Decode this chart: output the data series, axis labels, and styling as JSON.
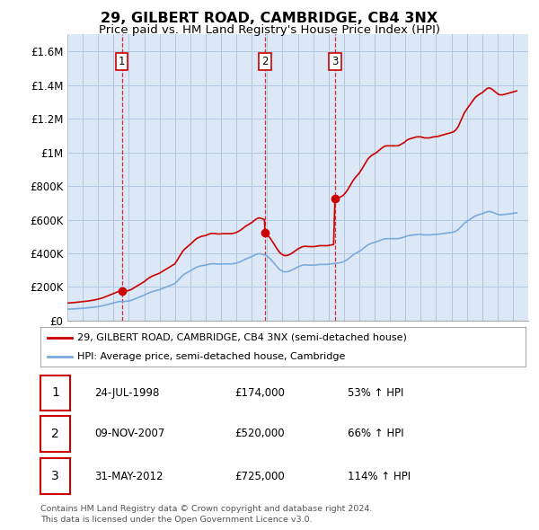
{
  "title": "29, GILBERT ROAD, CAMBRIDGE, CB4 3NX",
  "subtitle": "Price paid vs. HM Land Registry's House Price Index (HPI)",
  "title_fontsize": 11.5,
  "subtitle_fontsize": 9.5,
  "ylim": [
    0,
    1700000
  ],
  "yticks": [
    0,
    200000,
    400000,
    600000,
    800000,
    1000000,
    1200000,
    1400000,
    1600000
  ],
  "ytick_labels": [
    "£0",
    "£200K",
    "£400K",
    "£600K",
    "£800K",
    "£1M",
    "£1.2M",
    "£1.4M",
    "£1.6M"
  ],
  "xmin": 1995.0,
  "xmax": 2025.0,
  "plot_bg": "#dce8f5",
  "grid_color": "#b0c8e0",
  "red_color": "#cc0000",
  "blue_color": "#7aaadd",
  "dashed_color": "#cc0000",
  "legend_label_red": "29, GILBERT ROAD, CAMBRIDGE, CB4 3NX (semi-detached house)",
  "legend_label_blue": "HPI: Average price, semi-detached house, Cambridge",
  "transactions": [
    {
      "num": 1,
      "date": "24-JUL-1998",
      "price": 174000,
      "pct": "53%",
      "year": 1998.54
    },
    {
      "num": 2,
      "date": "09-NOV-2007",
      "price": 520000,
      "pct": "66%",
      "year": 2007.86
    },
    {
      "num": 3,
      "date": "31-MAY-2012",
      "price": 725000,
      "pct": "114%",
      "year": 2012.42
    }
  ],
  "footer1": "Contains HM Land Registry data © Crown copyright and database right 2024.",
  "footer2": "This data is licensed under the Open Government Licence v3.0.",
  "hpi_data": [
    [
      1995.0,
      68000
    ],
    [
      1995.08,
      68500
    ],
    [
      1995.17,
      69000
    ],
    [
      1995.25,
      69200
    ],
    [
      1995.33,
      69500
    ],
    [
      1995.42,
      70000
    ],
    [
      1995.5,
      70500
    ],
    [
      1995.58,
      71000
    ],
    [
      1995.67,
      71500
    ],
    [
      1995.75,
      72000
    ],
    [
      1995.83,
      72500
    ],
    [
      1995.92,
      73000
    ],
    [
      1996.0,
      73500
    ],
    [
      1996.08,
      74000
    ],
    [
      1996.17,
      74800
    ],
    [
      1996.25,
      75500
    ],
    [
      1996.33,
      76000
    ],
    [
      1996.42,
      76800
    ],
    [
      1996.5,
      77500
    ],
    [
      1996.58,
      78200
    ],
    [
      1996.67,
      79000
    ],
    [
      1996.75,
      80000
    ],
    [
      1996.83,
      81000
    ],
    [
      1996.92,
      82000
    ],
    [
      1997.0,
      83000
    ],
    [
      1997.08,
      84500
    ],
    [
      1997.17,
      86000
    ],
    [
      1997.25,
      87500
    ],
    [
      1997.33,
      89000
    ],
    [
      1997.42,
      91000
    ],
    [
      1997.5,
      93000
    ],
    [
      1997.58,
      95000
    ],
    [
      1997.67,
      97000
    ],
    [
      1997.75,
      99000
    ],
    [
      1997.83,
      101000
    ],
    [
      1997.92,
      103000
    ],
    [
      1998.0,
      105000
    ],
    [
      1998.08,
      107000
    ],
    [
      1998.17,
      109000
    ],
    [
      1998.25,
      111000
    ],
    [
      1998.33,
      113000
    ],
    [
      1998.42,
      114000
    ],
    [
      1998.5,
      113000
    ],
    [
      1998.54,
      113500
    ],
    [
      1998.58,
      113000
    ],
    [
      1998.67,
      113500
    ],
    [
      1998.75,
      114000
    ],
    [
      1998.83,
      115000
    ],
    [
      1998.92,
      116000
    ],
    [
      1999.0,
      117000
    ],
    [
      1999.08,
      119000
    ],
    [
      1999.17,
      121000
    ],
    [
      1999.25,
      124000
    ],
    [
      1999.33,
      127000
    ],
    [
      1999.42,
      130000
    ],
    [
      1999.5,
      133000
    ],
    [
      1999.58,
      136000
    ],
    [
      1999.67,
      139000
    ],
    [
      1999.75,
      142000
    ],
    [
      1999.83,
      145000
    ],
    [
      1999.92,
      148000
    ],
    [
      2000.0,
      151000
    ],
    [
      2000.08,
      155000
    ],
    [
      2000.17,
      159000
    ],
    [
      2000.25,
      163000
    ],
    [
      2000.33,
      166000
    ],
    [
      2000.42,
      169000
    ],
    [
      2000.5,
      172000
    ],
    [
      2000.58,
      174000
    ],
    [
      2000.67,
      176000
    ],
    [
      2000.75,
      178000
    ],
    [
      2000.83,
      180000
    ],
    [
      2000.92,
      182000
    ],
    [
      2001.0,
      184000
    ],
    [
      2001.08,
      187000
    ],
    [
      2001.17,
      190000
    ],
    [
      2001.25,
      193000
    ],
    [
      2001.33,
      196000
    ],
    [
      2001.42,
      199000
    ],
    [
      2001.5,
      202000
    ],
    [
      2001.58,
      205000
    ],
    [
      2001.67,
      208000
    ],
    [
      2001.75,
      211000
    ],
    [
      2001.83,
      214000
    ],
    [
      2001.92,
      217000
    ],
    [
      2002.0,
      220000
    ],
    [
      2002.08,
      228000
    ],
    [
      2002.17,
      236000
    ],
    [
      2002.25,
      244000
    ],
    [
      2002.33,
      252000
    ],
    [
      2002.42,
      260000
    ],
    [
      2002.5,
      268000
    ],
    [
      2002.58,
      274000
    ],
    [
      2002.67,
      279000
    ],
    [
      2002.75,
      283000
    ],
    [
      2002.83,
      287000
    ],
    [
      2002.92,
      291000
    ],
    [
      2003.0,
      295000
    ],
    [
      2003.08,
      300000
    ],
    [
      2003.17,
      305000
    ],
    [
      2003.25,
      310000
    ],
    [
      2003.33,
      314000
    ],
    [
      2003.42,
      318000
    ],
    [
      2003.5,
      321000
    ],
    [
      2003.58,
      323000
    ],
    [
      2003.67,
      325000
    ],
    [
      2003.75,
      327000
    ],
    [
      2003.83,
      328000
    ],
    [
      2003.92,
      329000
    ],
    [
      2004.0,
      330000
    ],
    [
      2004.08,
      332000
    ],
    [
      2004.17,
      334000
    ],
    [
      2004.25,
      336000
    ],
    [
      2004.33,
      337000
    ],
    [
      2004.42,
      338000
    ],
    [
      2004.5,
      338000
    ],
    [
      2004.58,
      338000
    ],
    [
      2004.67,
      337000
    ],
    [
      2004.75,
      336000
    ],
    [
      2004.83,
      336000
    ],
    [
      2004.92,
      336000
    ],
    [
      2005.0,
      336000
    ],
    [
      2005.08,
      337000
    ],
    [
      2005.17,
      337000
    ],
    [
      2005.25,
      337000
    ],
    [
      2005.33,
      337000
    ],
    [
      2005.42,
      337000
    ],
    [
      2005.5,
      337000
    ],
    [
      2005.58,
      337000
    ],
    [
      2005.67,
      337000
    ],
    [
      2005.75,
      338000
    ],
    [
      2005.83,
      339000
    ],
    [
      2005.92,
      340000
    ],
    [
      2006.0,
      342000
    ],
    [
      2006.08,
      344000
    ],
    [
      2006.17,
      347000
    ],
    [
      2006.25,
      350000
    ],
    [
      2006.33,
      353000
    ],
    [
      2006.42,
      357000
    ],
    [
      2006.5,
      361000
    ],
    [
      2006.58,
      365000
    ],
    [
      2006.67,
      368000
    ],
    [
      2006.75,
      371000
    ],
    [
      2006.83,
      374000
    ],
    [
      2006.92,
      377000
    ],
    [
      2007.0,
      380000
    ],
    [
      2007.08,
      384000
    ],
    [
      2007.17,
      388000
    ],
    [
      2007.25,
      392000
    ],
    [
      2007.33,
      395000
    ],
    [
      2007.42,
      397000
    ],
    [
      2007.5,
      398000
    ],
    [
      2007.58,
      397000
    ],
    [
      2007.67,
      395000
    ],
    [
      2007.75,
      393000
    ],
    [
      2007.83,
      391000
    ],
    [
      2007.86,
      390000
    ],
    [
      2007.92,
      387000
    ],
    [
      2008.0,
      383000
    ],
    [
      2008.08,
      377000
    ],
    [
      2008.17,
      370000
    ],
    [
      2008.25,
      363000
    ],
    [
      2008.33,
      354000
    ],
    [
      2008.42,
      345000
    ],
    [
      2008.5,
      336000
    ],
    [
      2008.58,
      327000
    ],
    [
      2008.67,
      318000
    ],
    [
      2008.75,
      310000
    ],
    [
      2008.83,
      303000
    ],
    [
      2008.92,
      298000
    ],
    [
      2009.0,
      294000
    ],
    [
      2009.08,
      291000
    ],
    [
      2009.17,
      290000
    ],
    [
      2009.25,
      290000
    ],
    [
      2009.33,
      291000
    ],
    [
      2009.42,
      293000
    ],
    [
      2009.5,
      296000
    ],
    [
      2009.58,
      299000
    ],
    [
      2009.67,
      303000
    ],
    [
      2009.75,
      307000
    ],
    [
      2009.83,
      311000
    ],
    [
      2009.92,
      315000
    ],
    [
      2010.0,
      319000
    ],
    [
      2010.08,
      322000
    ],
    [
      2010.17,
      325000
    ],
    [
      2010.25,
      328000
    ],
    [
      2010.33,
      330000
    ],
    [
      2010.42,
      331000
    ],
    [
      2010.5,
      331000
    ],
    [
      2010.58,
      331000
    ],
    [
      2010.67,
      330000
    ],
    [
      2010.75,
      330000
    ],
    [
      2010.83,
      330000
    ],
    [
      2010.92,
      330000
    ],
    [
      2011.0,
      330000
    ],
    [
      2011.08,
      330000
    ],
    [
      2011.17,
      331000
    ],
    [
      2011.25,
      332000
    ],
    [
      2011.33,
      333000
    ],
    [
      2011.42,
      334000
    ],
    [
      2011.5,
      334000
    ],
    [
      2011.58,
      334000
    ],
    [
      2011.67,
      334000
    ],
    [
      2011.75,
      334000
    ],
    [
      2011.83,
      334000
    ],
    [
      2011.92,
      334000
    ],
    [
      2012.0,
      335000
    ],
    [
      2012.08,
      336000
    ],
    [
      2012.17,
      337000
    ],
    [
      2012.25,
      338000
    ],
    [
      2012.33,
      339000
    ],
    [
      2012.42,
      340000
    ],
    [
      2012.5,
      341000
    ],
    [
      2012.58,
      342000
    ],
    [
      2012.67,
      343000
    ],
    [
      2012.75,
      344000
    ],
    [
      2012.83,
      346000
    ],
    [
      2012.92,
      348000
    ],
    [
      2013.0,
      351000
    ],
    [
      2013.08,
      355000
    ],
    [
      2013.17,
      360000
    ],
    [
      2013.25,
      365000
    ],
    [
      2013.33,
      371000
    ],
    [
      2013.42,
      377000
    ],
    [
      2013.5,
      383000
    ],
    [
      2013.58,
      389000
    ],
    [
      2013.67,
      394000
    ],
    [
      2013.75,
      399000
    ],
    [
      2013.83,
      403000
    ],
    [
      2013.92,
      407000
    ],
    [
      2014.0,
      411000
    ],
    [
      2014.08,
      416000
    ],
    [
      2014.17,
      422000
    ],
    [
      2014.25,
      428000
    ],
    [
      2014.33,
      434000
    ],
    [
      2014.42,
      440000
    ],
    [
      2014.5,
      446000
    ],
    [
      2014.58,
      451000
    ],
    [
      2014.67,
      455000
    ],
    [
      2014.75,
      458000
    ],
    [
      2014.83,
      461000
    ],
    [
      2014.92,
      463000
    ],
    [
      2015.0,
      465000
    ],
    [
      2015.08,
      467000
    ],
    [
      2015.17,
      470000
    ],
    [
      2015.25,
      473000
    ],
    [
      2015.33,
      476000
    ],
    [
      2015.42,
      479000
    ],
    [
      2015.5,
      482000
    ],
    [
      2015.58,
      484000
    ],
    [
      2015.67,
      486000
    ],
    [
      2015.75,
      487000
    ],
    [
      2015.83,
      487000
    ],
    [
      2015.92,
      487000
    ],
    [
      2016.0,
      487000
    ],
    [
      2016.08,
      487000
    ],
    [
      2016.17,
      487000
    ],
    [
      2016.25,
      487000
    ],
    [
      2016.33,
      487000
    ],
    [
      2016.42,
      487000
    ],
    [
      2016.5,
      487000
    ],
    [
      2016.58,
      488000
    ],
    [
      2016.67,
      490000
    ],
    [
      2016.75,
      492000
    ],
    [
      2016.83,
      494000
    ],
    [
      2016.92,
      496000
    ],
    [
      2017.0,
      499000
    ],
    [
      2017.08,
      502000
    ],
    [
      2017.17,
      504000
    ],
    [
      2017.25,
      506000
    ],
    [
      2017.33,
      507000
    ],
    [
      2017.42,
      508000
    ],
    [
      2017.5,
      509000
    ],
    [
      2017.58,
      510000
    ],
    [
      2017.67,
      511000
    ],
    [
      2017.75,
      512000
    ],
    [
      2017.83,
      512000
    ],
    [
      2017.92,
      512000
    ],
    [
      2018.0,
      512000
    ],
    [
      2018.08,
      511000
    ],
    [
      2018.17,
      510000
    ],
    [
      2018.25,
      509000
    ],
    [
      2018.33,
      509000
    ],
    [
      2018.42,
      509000
    ],
    [
      2018.5,
      509000
    ],
    [
      2018.58,
      509000
    ],
    [
      2018.67,
      510000
    ],
    [
      2018.75,
      511000
    ],
    [
      2018.83,
      512000
    ],
    [
      2018.92,
      512000
    ],
    [
      2019.0,
      513000
    ],
    [
      2019.08,
      513000
    ],
    [
      2019.17,
      514000
    ],
    [
      2019.25,
      515000
    ],
    [
      2019.33,
      516000
    ],
    [
      2019.42,
      517000
    ],
    [
      2019.5,
      518000
    ],
    [
      2019.58,
      519000
    ],
    [
      2019.67,
      520000
    ],
    [
      2019.75,
      521000
    ],
    [
      2019.83,
      522000
    ],
    [
      2019.92,
      523000
    ],
    [
      2020.0,
      524000
    ],
    [
      2020.08,
      525000
    ],
    [
      2020.17,
      527000
    ],
    [
      2020.25,
      530000
    ],
    [
      2020.33,
      534000
    ],
    [
      2020.42,
      539000
    ],
    [
      2020.5,
      546000
    ],
    [
      2020.58,
      554000
    ],
    [
      2020.67,
      562000
    ],
    [
      2020.75,
      570000
    ],
    [
      2020.83,
      578000
    ],
    [
      2020.92,
      584000
    ],
    [
      2021.0,
      589000
    ],
    [
      2021.08,
      594000
    ],
    [
      2021.17,
      599000
    ],
    [
      2021.25,
      604000
    ],
    [
      2021.33,
      609000
    ],
    [
      2021.42,
      614000
    ],
    [
      2021.5,
      619000
    ],
    [
      2021.58,
      623000
    ],
    [
      2021.67,
      626000
    ],
    [
      2021.75,
      629000
    ],
    [
      2021.83,
      631000
    ],
    [
      2021.92,
      633000
    ],
    [
      2022.0,
      635000
    ],
    [
      2022.08,
      638000
    ],
    [
      2022.17,
      641000
    ],
    [
      2022.25,
      644000
    ],
    [
      2022.33,
      647000
    ],
    [
      2022.42,
      648000
    ],
    [
      2022.5,
      648000
    ],
    [
      2022.58,
      646000
    ],
    [
      2022.67,
      644000
    ],
    [
      2022.75,
      641000
    ],
    [
      2022.83,
      638000
    ],
    [
      2022.92,
      635000
    ],
    [
      2023.0,
      632000
    ],
    [
      2023.08,
      630000
    ],
    [
      2023.17,
      629000
    ],
    [
      2023.25,
      629000
    ],
    [
      2023.33,
      629000
    ],
    [
      2023.42,
      630000
    ],
    [
      2023.5,
      631000
    ],
    [
      2023.58,
      632000
    ],
    [
      2023.67,
      633000
    ],
    [
      2023.75,
      634000
    ],
    [
      2023.83,
      635000
    ],
    [
      2023.92,
      636000
    ],
    [
      2024.0,
      637000
    ],
    [
      2024.08,
      638000
    ],
    [
      2024.17,
      639000
    ],
    [
      2024.25,
      640000
    ]
  ]
}
